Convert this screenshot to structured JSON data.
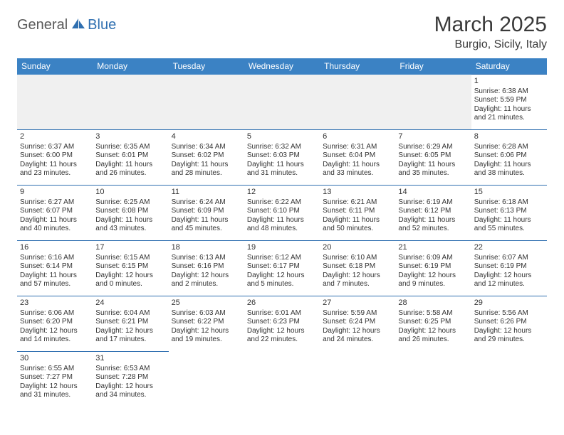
{
  "logo": {
    "part1": "General",
    "part2": "Blue"
  },
  "title": "March 2025",
  "location": "Burgio, Sicily, Italy",
  "colors": {
    "header_bg": "#3b82c4",
    "header_text": "#ffffff",
    "border": "#2f6fb0",
    "logo_gray": "#5a5a5a",
    "logo_blue": "#2f6fb0",
    "empty_bg": "#f0f0f0"
  },
  "day_headers": [
    "Sunday",
    "Monday",
    "Tuesday",
    "Wednesday",
    "Thursday",
    "Friday",
    "Saturday"
  ],
  "weeks": [
    [
      {
        "empty": true
      },
      {
        "empty": true
      },
      {
        "empty": true
      },
      {
        "empty": true
      },
      {
        "empty": true
      },
      {
        "empty": true
      },
      {
        "day": "1",
        "sunrise": "Sunrise: 6:38 AM",
        "sunset": "Sunset: 5:59 PM",
        "daylight": "Daylight: 11 hours and 21 minutes."
      }
    ],
    [
      {
        "day": "2",
        "sunrise": "Sunrise: 6:37 AM",
        "sunset": "Sunset: 6:00 PM",
        "daylight": "Daylight: 11 hours and 23 minutes."
      },
      {
        "day": "3",
        "sunrise": "Sunrise: 6:35 AM",
        "sunset": "Sunset: 6:01 PM",
        "daylight": "Daylight: 11 hours and 26 minutes."
      },
      {
        "day": "4",
        "sunrise": "Sunrise: 6:34 AM",
        "sunset": "Sunset: 6:02 PM",
        "daylight": "Daylight: 11 hours and 28 minutes."
      },
      {
        "day": "5",
        "sunrise": "Sunrise: 6:32 AM",
        "sunset": "Sunset: 6:03 PM",
        "daylight": "Daylight: 11 hours and 31 minutes."
      },
      {
        "day": "6",
        "sunrise": "Sunrise: 6:31 AM",
        "sunset": "Sunset: 6:04 PM",
        "daylight": "Daylight: 11 hours and 33 minutes."
      },
      {
        "day": "7",
        "sunrise": "Sunrise: 6:29 AM",
        "sunset": "Sunset: 6:05 PM",
        "daylight": "Daylight: 11 hours and 35 minutes."
      },
      {
        "day": "8",
        "sunrise": "Sunrise: 6:28 AM",
        "sunset": "Sunset: 6:06 PM",
        "daylight": "Daylight: 11 hours and 38 minutes."
      }
    ],
    [
      {
        "day": "9",
        "sunrise": "Sunrise: 6:27 AM",
        "sunset": "Sunset: 6:07 PM",
        "daylight": "Daylight: 11 hours and 40 minutes."
      },
      {
        "day": "10",
        "sunrise": "Sunrise: 6:25 AM",
        "sunset": "Sunset: 6:08 PM",
        "daylight": "Daylight: 11 hours and 43 minutes."
      },
      {
        "day": "11",
        "sunrise": "Sunrise: 6:24 AM",
        "sunset": "Sunset: 6:09 PM",
        "daylight": "Daylight: 11 hours and 45 minutes."
      },
      {
        "day": "12",
        "sunrise": "Sunrise: 6:22 AM",
        "sunset": "Sunset: 6:10 PM",
        "daylight": "Daylight: 11 hours and 48 minutes."
      },
      {
        "day": "13",
        "sunrise": "Sunrise: 6:21 AM",
        "sunset": "Sunset: 6:11 PM",
        "daylight": "Daylight: 11 hours and 50 minutes."
      },
      {
        "day": "14",
        "sunrise": "Sunrise: 6:19 AM",
        "sunset": "Sunset: 6:12 PM",
        "daylight": "Daylight: 11 hours and 52 minutes."
      },
      {
        "day": "15",
        "sunrise": "Sunrise: 6:18 AM",
        "sunset": "Sunset: 6:13 PM",
        "daylight": "Daylight: 11 hours and 55 minutes."
      }
    ],
    [
      {
        "day": "16",
        "sunrise": "Sunrise: 6:16 AM",
        "sunset": "Sunset: 6:14 PM",
        "daylight": "Daylight: 11 hours and 57 minutes."
      },
      {
        "day": "17",
        "sunrise": "Sunrise: 6:15 AM",
        "sunset": "Sunset: 6:15 PM",
        "daylight": "Daylight: 12 hours and 0 minutes."
      },
      {
        "day": "18",
        "sunrise": "Sunrise: 6:13 AM",
        "sunset": "Sunset: 6:16 PM",
        "daylight": "Daylight: 12 hours and 2 minutes."
      },
      {
        "day": "19",
        "sunrise": "Sunrise: 6:12 AM",
        "sunset": "Sunset: 6:17 PM",
        "daylight": "Daylight: 12 hours and 5 minutes."
      },
      {
        "day": "20",
        "sunrise": "Sunrise: 6:10 AM",
        "sunset": "Sunset: 6:18 PM",
        "daylight": "Daylight: 12 hours and 7 minutes."
      },
      {
        "day": "21",
        "sunrise": "Sunrise: 6:09 AM",
        "sunset": "Sunset: 6:19 PM",
        "daylight": "Daylight: 12 hours and 9 minutes."
      },
      {
        "day": "22",
        "sunrise": "Sunrise: 6:07 AM",
        "sunset": "Sunset: 6:19 PM",
        "daylight": "Daylight: 12 hours and 12 minutes."
      }
    ],
    [
      {
        "day": "23",
        "sunrise": "Sunrise: 6:06 AM",
        "sunset": "Sunset: 6:20 PM",
        "daylight": "Daylight: 12 hours and 14 minutes."
      },
      {
        "day": "24",
        "sunrise": "Sunrise: 6:04 AM",
        "sunset": "Sunset: 6:21 PM",
        "daylight": "Daylight: 12 hours and 17 minutes."
      },
      {
        "day": "25",
        "sunrise": "Sunrise: 6:03 AM",
        "sunset": "Sunset: 6:22 PM",
        "daylight": "Daylight: 12 hours and 19 minutes."
      },
      {
        "day": "26",
        "sunrise": "Sunrise: 6:01 AM",
        "sunset": "Sunset: 6:23 PM",
        "daylight": "Daylight: 12 hours and 22 minutes."
      },
      {
        "day": "27",
        "sunrise": "Sunrise: 5:59 AM",
        "sunset": "Sunset: 6:24 PM",
        "daylight": "Daylight: 12 hours and 24 minutes."
      },
      {
        "day": "28",
        "sunrise": "Sunrise: 5:58 AM",
        "sunset": "Sunset: 6:25 PM",
        "daylight": "Daylight: 12 hours and 26 minutes."
      },
      {
        "day": "29",
        "sunrise": "Sunrise: 5:56 AM",
        "sunset": "Sunset: 6:26 PM",
        "daylight": "Daylight: 12 hours and 29 minutes."
      }
    ],
    [
      {
        "day": "30",
        "sunrise": "Sunrise: 6:55 AM",
        "sunset": "Sunset: 7:27 PM",
        "daylight": "Daylight: 12 hours and 31 minutes."
      },
      {
        "day": "31",
        "sunrise": "Sunrise: 6:53 AM",
        "sunset": "Sunset: 7:28 PM",
        "daylight": "Daylight: 12 hours and 34 minutes."
      },
      {
        "empty": true
      },
      {
        "empty": true
      },
      {
        "empty": true
      },
      {
        "empty": true
      },
      {
        "empty": true
      }
    ]
  ]
}
